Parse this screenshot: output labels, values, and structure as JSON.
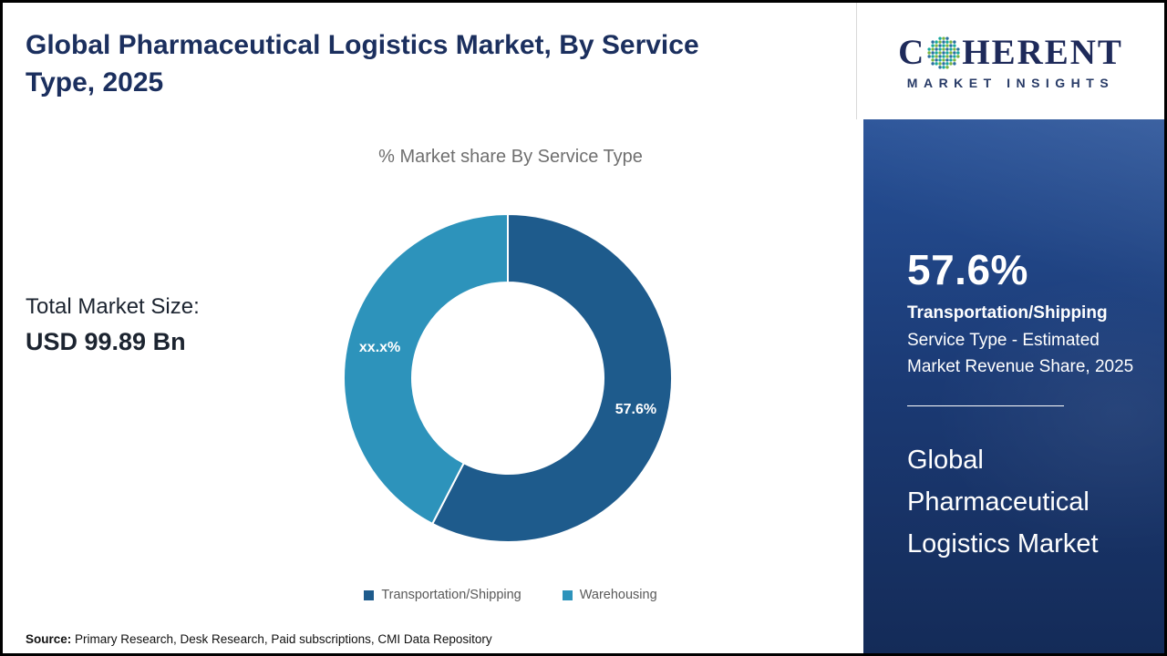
{
  "page": {
    "title": "Global Pharmaceutical Logistics Market, By Service Type, 2025",
    "source_label": "Source:",
    "source_text": " Primary Research, Desk Research, Paid subscriptions, CMI Data Repository"
  },
  "totals": {
    "label": "Total Market Size:",
    "value": "USD 99.89 Bn"
  },
  "chart_data": {
    "type": "pie",
    "donut": true,
    "title": "% Market share By Service Type",
    "categories": [
      "Transportation/Shipping",
      "Warehousing"
    ],
    "values": [
      57.6,
      42.4
    ],
    "slice_labels": [
      "57.6%",
      "xx.x%"
    ],
    "colors": [
      "#1e5b8c",
      "#2d93bb"
    ],
    "legend_position": "bottom",
    "start_angle_deg": 0,
    "direction": "clockwise"
  },
  "sidebar": {
    "logo": {
      "brand_prefix": "C",
      "brand_suffix": "HERENT",
      "brand_subtitle": "MARKET INSIGHTS",
      "globe_colors": [
        "#18a79c",
        "#79b543",
        "#2a6f9e"
      ]
    },
    "stat": {
      "value": "57.6%",
      "category": "Transportation/Shipping",
      "description": "Service Type - Estimated Market Revenue Share, 2025"
    },
    "market_name": "Global Pharmaceutical Logistics Market"
  },
  "colors": {
    "accent_navy": "#1b2f5e",
    "panel_top": "#265097",
    "panel_bottom": "#142b58"
  }
}
